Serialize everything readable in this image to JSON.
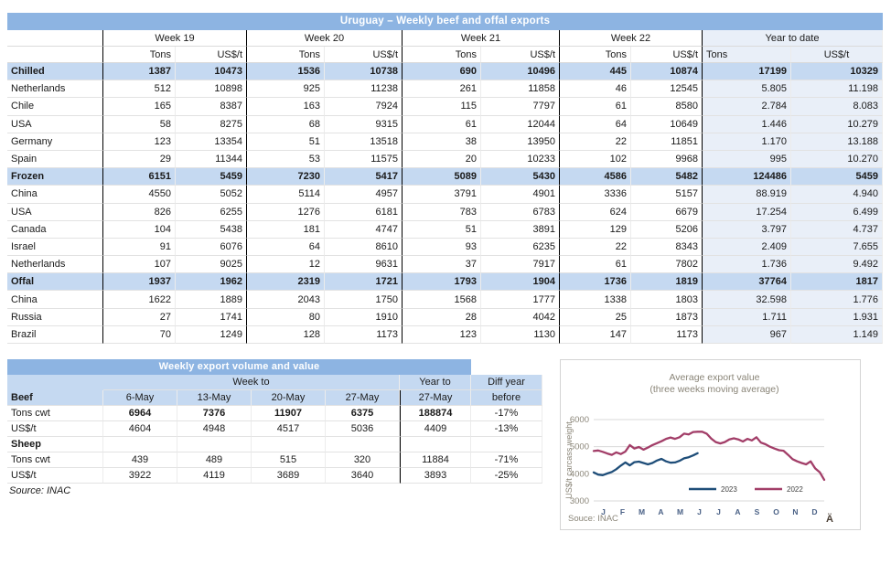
{
  "colors": {
    "title_bar": "#8DB4E2",
    "header_band": "#C5D9F1",
    "ytd_band": "#E9EFF8",
    "line_2023": "#1F4E79",
    "line_2022": "#A23E68",
    "chart_text": "#8A8578",
    "month_label": "#4A6186",
    "grid_line": "#D9D9D9"
  },
  "table1": {
    "title": "Uruguay – Weekly beef and offal exports",
    "week_groups": [
      "Week 19",
      "Week 20",
      "Week 21",
      "Week 22"
    ],
    "ytd_label": "Year to date",
    "col_tons": "Tons",
    "col_usd": "US$/t",
    "rows": [
      {
        "label": "Chilled",
        "section": true,
        "values": [
          "1387",
          "10473",
          "1536",
          "10738",
          "690",
          "10496",
          "445",
          "10874",
          "17199",
          "10329"
        ]
      },
      {
        "label": "Netherlands",
        "values": [
          "512",
          "10898",
          "925",
          "11238",
          "261",
          "11858",
          "46",
          "12545",
          "5.805",
          "11.198"
        ]
      },
      {
        "label": "Chile",
        "values": [
          "165",
          "8387",
          "163",
          "7924",
          "115",
          "7797",
          "61",
          "8580",
          "2.784",
          "8.083"
        ]
      },
      {
        "label": "USA",
        "values": [
          "58",
          "8275",
          "68",
          "9315",
          "61",
          "12044",
          "64",
          "10649",
          "1.446",
          "10.279"
        ]
      },
      {
        "label": "Germany",
        "values": [
          "123",
          "13354",
          "51",
          "13518",
          "38",
          "13950",
          "22",
          "11851",
          "1.170",
          "13.188"
        ]
      },
      {
        "label": "Spain",
        "values": [
          "29",
          "11344",
          "53",
          "11575",
          "20",
          "10233",
          "102",
          "9968",
          "995",
          "10.270"
        ]
      },
      {
        "label": "Frozen",
        "section": true,
        "values": [
          "6151",
          "5459",
          "7230",
          "5417",
          "5089",
          "5430",
          "4586",
          "5482",
          "124486",
          "5459"
        ]
      },
      {
        "label": "China",
        "values": [
          "4550",
          "5052",
          "5114",
          "4957",
          "3791",
          "4901",
          "3336",
          "5157",
          "88.919",
          "4.940"
        ]
      },
      {
        "label": "USA",
        "values": [
          "826",
          "6255",
          "1276",
          "6181",
          "783",
          "6783",
          "624",
          "6679",
          "17.254",
          "6.499"
        ]
      },
      {
        "label": "Canada",
        "values": [
          "104",
          "5438",
          "181",
          "4747",
          "51",
          "3891",
          "129",
          "5206",
          "3.797",
          "4.737"
        ]
      },
      {
        "label": "Israel",
        "values": [
          "91",
          "6076",
          "64",
          "8610",
          "93",
          "6235",
          "22",
          "8343",
          "2.409",
          "7.655"
        ]
      },
      {
        "label": "Netherlands",
        "values": [
          "107",
          "9025",
          "12",
          "9631",
          "37",
          "7917",
          "61",
          "7802",
          "1.736",
          "9.492"
        ]
      },
      {
        "label": "Offal",
        "section": true,
        "values": [
          "1937",
          "1962",
          "2319",
          "1721",
          "1793",
          "1904",
          "1736",
          "1819",
          "37764",
          "1817"
        ]
      },
      {
        "label": "China",
        "values": [
          "1622",
          "1889",
          "2043",
          "1750",
          "1568",
          "1777",
          "1338",
          "1803",
          "32.598",
          "1.776"
        ]
      },
      {
        "label": "Russia",
        "values": [
          "27",
          "1741",
          "80",
          "1910",
          "28",
          "4042",
          "25",
          "1873",
          "1.711",
          "1.931"
        ]
      },
      {
        "label": "Brazil",
        "values": [
          "70",
          "1249",
          "128",
          "1173",
          "123",
          "1130",
          "147",
          "1173",
          "967",
          "1.149"
        ]
      }
    ]
  },
  "table2": {
    "title": "Weekly export volume and value",
    "week_to": "Week to",
    "year_to": "Year to",
    "diff_year": "Diff year",
    "header_row": {
      "label": "Beef",
      "cells": [
        "6-May",
        "13-May",
        "20-May",
        "27-May",
        "27-May",
        "before"
      ]
    },
    "rows": [
      {
        "label": "Tons cwt",
        "strong": true,
        "values": [
          "6964",
          "7376",
          "11907",
          "6375",
          "188874",
          "-17%"
        ]
      },
      {
        "label": "US$/t",
        "values": [
          "4604",
          "4948",
          "4517",
          "5036",
          "4409",
          "-13%"
        ]
      },
      {
        "label": "Sheep",
        "section": true,
        "values": [
          "",
          "",
          "",
          "",
          "",
          ""
        ]
      },
      {
        "label": "Tons cwt",
        "values": [
          "439",
          "489",
          "515",
          "320",
          "11884",
          "-71%"
        ]
      },
      {
        "label": "US$/t",
        "values": [
          "3922",
          "4119",
          "3689",
          "3640",
          "3893",
          "-25%"
        ]
      }
    ],
    "source": "Source: INAC"
  },
  "chart_data": {
    "type": "line",
    "title": "Average export  value",
    "subtitle": "(three weeks moving average)",
    "ylabel": "US$/t carcass weight",
    "yticks": [
      3000,
      4000,
      5000,
      6000
    ],
    "ylim": [
      3000,
      6000
    ],
    "x_slots": 52,
    "x_labels": [
      "J",
      "F",
      "M",
      "A",
      "M",
      "J",
      "J",
      "A",
      "S",
      "O",
      "N",
      "D"
    ],
    "legend_position": "bottom-center",
    "grid": true,
    "series": [
      {
        "name": "2023",
        "values": [
          4050,
          3970,
          3950,
          4010,
          4070,
          4170,
          4300,
          4420,
          4310,
          4430,
          4450,
          4400,
          4350,
          4400,
          4490,
          4550,
          4460,
          4410,
          4420,
          4480,
          4570,
          4610,
          4680,
          4760
        ]
      },
      {
        "name": "2022",
        "values": [
          4840,
          4860,
          4810,
          4750,
          4700,
          4790,
          4730,
          4820,
          5060,
          4930,
          4990,
          4890,
          4970,
          5060,
          5130,
          5200,
          5290,
          5340,
          5290,
          5350,
          5480,
          5450,
          5540,
          5550,
          5550,
          5480,
          5300,
          5170,
          5120,
          5170,
          5270,
          5310,
          5270,
          5190,
          5290,
          5230,
          5350,
          5150,
          5090,
          5000,
          4930,
          4870,
          4850,
          4700,
          4540,
          4460,
          4400,
          4350,
          4460,
          4200,
          4060,
          3780
        ]
      }
    ],
    "source": "Souce: INAC",
    "corner_glyph": "Ä"
  }
}
